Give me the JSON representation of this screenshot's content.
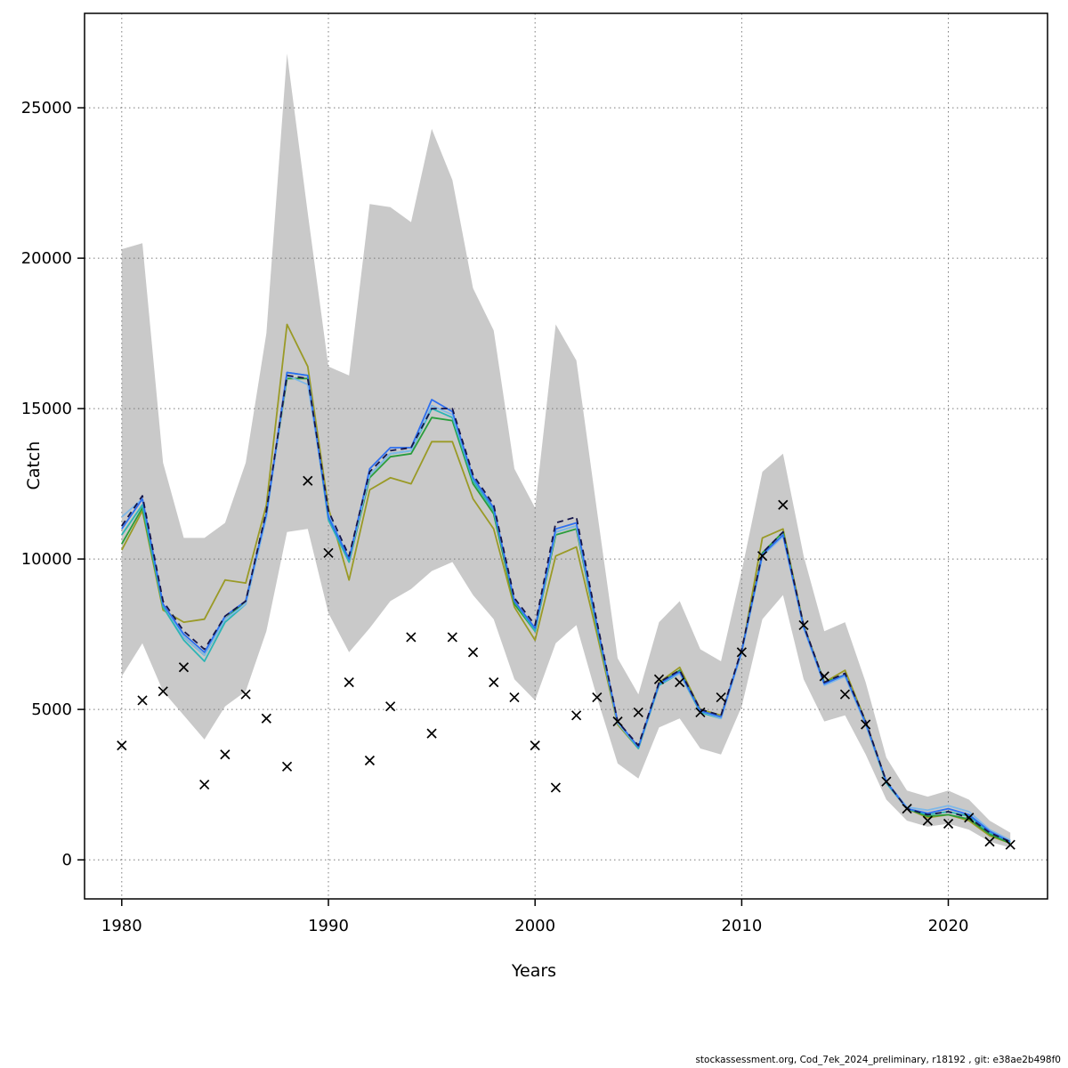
{
  "footer": {
    "text": "stockassessment.org, Cod_7ek_2024_preliminary, r18192 , git: e38ae2b498f0"
  },
  "chart_data": {
    "type": "line",
    "title": "",
    "xlabel": "Years",
    "ylabel": "Catch",
    "xlim": [
      1978.2,
      2024.8
    ],
    "ylim": [
      -1300,
      28140
    ],
    "x_ticks": [
      1980,
      1990,
      2000,
      2010,
      2020
    ],
    "y_ticks": [
      0,
      5000,
      10000,
      15000,
      20000,
      25000
    ],
    "grid": "dotted",
    "grid_color": "#7a7a7a",
    "years": [
      1980,
      1981,
      1982,
      1983,
      1984,
      1985,
      1986,
      1987,
      1988,
      1989,
      1990,
      1991,
      1992,
      1993,
      1994,
      1995,
      1996,
      1997,
      1998,
      1999,
      2000,
      2001,
      2002,
      2003,
      2004,
      2005,
      2006,
      2007,
      2008,
      2009,
      2010,
      2011,
      2012,
      2013,
      2014,
      2015,
      2016,
      2017,
      2018,
      2019,
      2020,
      2021,
      2022,
      2023
    ],
    "band": {
      "color": "#c9c9c9",
      "upper": [
        20300,
        20500,
        13200,
        10700,
        10700,
        11200,
        13200,
        17500,
        26800,
        21500,
        16400,
        16100,
        21800,
        21700,
        21200,
        24300,
        22600,
        19000,
        17600,
        13000,
        11700,
        17800,
        16600,
        11600,
        6700,
        5500,
        7900,
        8600,
        7000,
        6600,
        9600,
        12900,
        13500,
        10100,
        7600,
        7900,
        5900,
        3400,
        2300,
        2100,
        2300,
        2000,
        1300,
        900
      ],
      "lower": [
        6100,
        7200,
        5600,
        4800,
        4000,
        5100,
        5600,
        7600,
        10900,
        11000,
        8200,
        6900,
        7700,
        8600,
        9000,
        9600,
        9900,
        8800,
        8000,
        6000,
        5300,
        7200,
        7800,
        5400,
        3200,
        2700,
        4400,
        4700,
        3700,
        3500,
        5100,
        8000,
        8800,
        6000,
        4600,
        4800,
        3500,
        2000,
        1300,
        1100,
        1200,
        1000,
        600,
        400
      ]
    },
    "observed": {
      "marker": "x",
      "color": "#000000",
      "values": [
        3800,
        5300,
        5600,
        6400,
        2500,
        3500,
        5500,
        4700,
        3100,
        12600,
        10200,
        5900,
        3300,
        5100,
        7400,
        4200,
        7400,
        6900,
        5900,
        5400,
        3800,
        2400,
        4800,
        5400,
        4600,
        4900,
        6000,
        5900,
        4900,
        5400,
        6900,
        10100,
        11800,
        7800,
        6100,
        5500,
        4500,
        2600,
        1700,
        1300,
        1200,
        1400,
        600,
        500
      ]
    },
    "series": [
      {
        "name": "retro-olive",
        "color": "#9a9a26",
        "values": [
          10300,
          11600,
          8300,
          7900,
          8000,
          9300,
          9200,
          11800,
          17800,
          16400,
          11700,
          9300,
          12300,
          12700,
          12500,
          13900,
          13900,
          12000,
          11000,
          8400,
          7300,
          10100,
          10400,
          7500,
          4500,
          3700,
          5900,
          6400,
          5000,
          4800,
          6900,
          10700,
          11000,
          7800,
          5900,
          6300,
          4600,
          2600,
          1700,
          1400,
          1500,
          1300,
          800,
          550
        ]
      },
      {
        "name": "retro-green",
        "color": "#2a9d3c",
        "values": [
          10500,
          11700,
          8400,
          7400,
          6800,
          8000,
          8600,
          11500,
          16000,
          16000,
          11400,
          9900,
          12700,
          13400,
          13500,
          14700,
          14600,
          12500,
          11500,
          8500,
          7600,
          10800,
          11000,
          7700,
          4550,
          3750,
          5850,
          6300,
          4950,
          4750,
          6950,
          10200,
          10900,
          7750,
          5900,
          6150,
          4550,
          2600,
          1700,
          1450,
          1500,
          1350,
          850,
          550
        ]
      },
      {
        "name": "retro-teal",
        "color": "#2cb5b5",
        "values": [
          10800,
          11800,
          8400,
          7300,
          6600,
          7900,
          8500,
          11400,
          16200,
          16100,
          11300,
          9900,
          12800,
          13500,
          13600,
          15000,
          14700,
          12600,
          11600,
          8600,
          7600,
          10900,
          11100,
          7700,
          4550,
          3700,
          5800,
          6200,
          4900,
          4700,
          6900,
          10100,
          10800,
          7700,
          5850,
          6100,
          4500,
          2550,
          1700,
          1500,
          1600,
          1450,
          900,
          600
        ]
      },
      {
        "name": "retro-skyblue",
        "color": "#7fb8e8",
        "values": [
          11400,
          12000,
          8500,
          7400,
          6800,
          8000,
          8500,
          11400,
          16100,
          15800,
          11500,
          10000,
          12800,
          13500,
          13600,
          15100,
          14800,
          12700,
          11700,
          8600,
          7700,
          10900,
          11100,
          7800,
          4550,
          3750,
          5850,
          6200,
          4950,
          4700,
          6900,
          10100,
          10750,
          7700,
          5800,
          6100,
          4500,
          2600,
          1750,
          1650,
          1800,
          1600,
          1000,
          650
        ]
      },
      {
        "name": "retro-blue",
        "color": "#2d6ff0",
        "values": [
          11000,
          12000,
          8500,
          7500,
          6900,
          8100,
          8600,
          11500,
          16200,
          16100,
          11400,
          10000,
          13000,
          13700,
          13700,
          15300,
          14900,
          12700,
          11700,
          8600,
          7700,
          11000,
          11200,
          7800,
          4600,
          3750,
          5850,
          6250,
          4950,
          4750,
          6950,
          10150,
          10800,
          7750,
          5850,
          6150,
          4550,
          2600,
          1700,
          1550,
          1700,
          1500,
          950,
          600
        ]
      },
      {
        "name": "fit-base",
        "color": "#15154a",
        "dash": "7 5",
        "values": [
          11100,
          12100,
          8600,
          7600,
          7000,
          8100,
          8600,
          11600,
          16100,
          16000,
          11600,
          10100,
          12900,
          13600,
          13700,
          15000,
          15000,
          12800,
          11800,
          8700,
          7800,
          11200,
          11400,
          7900,
          4600,
          3800,
          5900,
          6300,
          5000,
          4800,
          7000,
          10200,
          10900,
          7800,
          5900,
          6200,
          4600,
          2600,
          1700,
          1500,
          1600,
          1400,
          900,
          600
        ]
      }
    ]
  }
}
